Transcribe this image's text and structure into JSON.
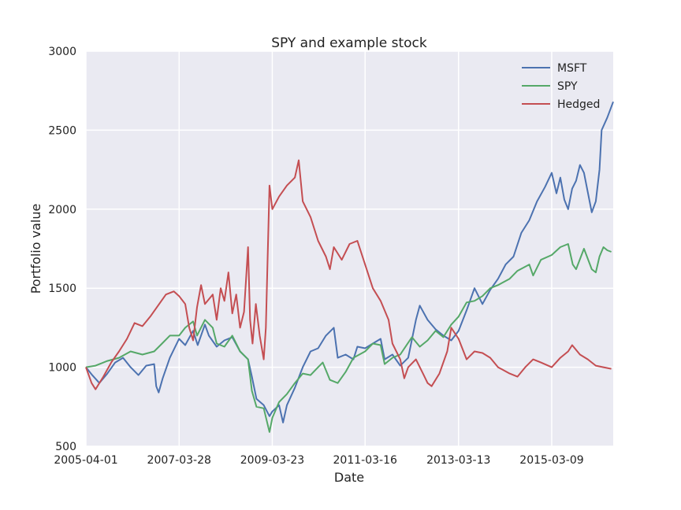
{
  "chart_data": {
    "type": "line",
    "title": "SPY and example stock",
    "xlabel": "Date",
    "ylabel": "Portfolio value",
    "xlim": [
      "2005-04-01",
      "2016-06-30"
    ],
    "ylim": [
      500,
      3000
    ],
    "x_ticks": [
      "2005-04-01",
      "2007-03-28",
      "2009-03-23",
      "2011-03-16",
      "2013-03-13",
      "2015-03-09"
    ],
    "y_ticks": [
      500,
      1000,
      1500,
      2000,
      2500,
      3000
    ],
    "grid": true,
    "legend_position": "top-right",
    "colors": {
      "background": "#eaeaf2",
      "grid": "#ffffff"
    },
    "series": [
      {
        "name": "MSFT",
        "color": "#4c72b0",
        "points": [
          [
            "2005-04-01",
            1000
          ],
          [
            "2005-05-20",
            950
          ],
          [
            "2005-07-15",
            900
          ],
          [
            "2005-09-15",
            960
          ],
          [
            "2005-11-15",
            1030
          ],
          [
            "2006-01-15",
            1060
          ],
          [
            "2006-03-15",
            1000
          ],
          [
            "2006-05-15",
            950
          ],
          [
            "2006-07-15",
            1010
          ],
          [
            "2006-09-15",
            1020
          ],
          [
            "2006-10-01",
            880
          ],
          [
            "2006-10-20",
            840
          ],
          [
            "2006-11-20",
            930
          ],
          [
            "2007-01-15",
            1060
          ],
          [
            "2007-03-28",
            1180
          ],
          [
            "2007-05-15",
            1140
          ],
          [
            "2007-07-15",
            1230
          ],
          [
            "2007-08-20",
            1140
          ],
          [
            "2007-10-15",
            1270
          ],
          [
            "2007-11-15",
            1200
          ],
          [
            "2008-01-15",
            1130
          ],
          [
            "2008-03-15",
            1170
          ],
          [
            "2008-05-15",
            1190
          ],
          [
            "2008-07-15",
            1100
          ],
          [
            "2008-09-15",
            1050
          ],
          [
            "2008-10-15",
            940
          ],
          [
            "2008-11-20",
            800
          ],
          [
            "2009-01-15",
            760
          ],
          [
            "2009-03-01",
            690
          ],
          [
            "2009-03-23",
            720
          ],
          [
            "2009-05-15",
            760
          ],
          [
            "2009-06-15",
            650
          ],
          [
            "2009-07-15",
            760
          ],
          [
            "2009-09-15",
            870
          ],
          [
            "2009-11-15",
            1000
          ],
          [
            "2010-01-15",
            1100
          ],
          [
            "2010-03-15",
            1120
          ],
          [
            "2010-05-15",
            1200
          ],
          [
            "2010-07-15",
            1250
          ],
          [
            "2010-08-15",
            1060
          ],
          [
            "2010-10-15",
            1080
          ],
          [
            "2010-12-15",
            1050
          ],
          [
            "2011-01-15",
            1130
          ],
          [
            "2011-03-16",
            1120
          ],
          [
            "2011-05-15",
            1150
          ],
          [
            "2011-07-15",
            1180
          ],
          [
            "2011-08-15",
            1050
          ],
          [
            "2011-10-15",
            1080
          ],
          [
            "2011-12-15",
            1010
          ],
          [
            "2012-02-15",
            1060
          ],
          [
            "2012-04-15",
            1300
          ],
          [
            "2012-05-15",
            1390
          ],
          [
            "2012-07-15",
            1300
          ],
          [
            "2012-09-15",
            1240
          ],
          [
            "2012-11-15",
            1200
          ],
          [
            "2013-01-15",
            1170
          ],
          [
            "2013-03-13",
            1230
          ],
          [
            "2013-05-15",
            1360
          ],
          [
            "2013-07-15",
            1500
          ],
          [
            "2013-09-15",
            1400
          ],
          [
            "2013-11-15",
            1490
          ],
          [
            "2014-01-15",
            1560
          ],
          [
            "2014-03-15",
            1650
          ],
          [
            "2014-05-15",
            1700
          ],
          [
            "2014-07-15",
            1850
          ],
          [
            "2014-09-15",
            1930
          ],
          [
            "2014-11-15",
            2050
          ],
          [
            "2015-01-15",
            2140
          ],
          [
            "2015-03-09",
            2230
          ],
          [
            "2015-04-15",
            2100
          ],
          [
            "2015-05-15",
            2200
          ],
          [
            "2015-06-15",
            2060
          ],
          [
            "2015-07-15",
            2000
          ],
          [
            "2015-08-15",
            2130
          ],
          [
            "2015-09-15",
            2180
          ],
          [
            "2015-10-15",
            2280
          ],
          [
            "2015-11-15",
            2230
          ],
          [
            "2016-01-15",
            1980
          ],
          [
            "2016-02-15",
            2050
          ],
          [
            "2016-03-15",
            2250
          ],
          [
            "2016-04-01",
            2500
          ],
          [
            "2016-05-15",
            2580
          ],
          [
            "2016-06-30",
            2680
          ]
        ]
      },
      {
        "name": "SPY",
        "color": "#55a868",
        "points": [
          [
            "2005-04-01",
            1000
          ],
          [
            "2005-06-15",
            1010
          ],
          [
            "2005-09-15",
            1040
          ],
          [
            "2005-12-15",
            1060
          ],
          [
            "2006-03-15",
            1100
          ],
          [
            "2006-06-15",
            1080
          ],
          [
            "2006-09-15",
            1100
          ],
          [
            "2006-11-15",
            1150
          ],
          [
            "2007-01-15",
            1200
          ],
          [
            "2007-03-28",
            1200
          ],
          [
            "2007-05-15",
            1250
          ],
          [
            "2007-07-15",
            1290
          ],
          [
            "2007-08-15",
            1200
          ],
          [
            "2007-10-15",
            1300
          ],
          [
            "2007-12-15",
            1250
          ],
          [
            "2008-01-15",
            1150
          ],
          [
            "2008-03-15",
            1130
          ],
          [
            "2008-05-15",
            1200
          ],
          [
            "2008-07-15",
            1100
          ],
          [
            "2008-09-15",
            1050
          ],
          [
            "2008-10-15",
            850
          ],
          [
            "2008-11-20",
            750
          ],
          [
            "2009-01-15",
            740
          ],
          [
            "2009-03-01",
            590
          ],
          [
            "2009-03-23",
            680
          ],
          [
            "2009-05-15",
            780
          ],
          [
            "2009-07-15",
            830
          ],
          [
            "2009-09-15",
            900
          ],
          [
            "2009-11-15",
            960
          ],
          [
            "2010-01-15",
            950
          ],
          [
            "2010-03-15",
            1000
          ],
          [
            "2010-04-20",
            1030
          ],
          [
            "2010-06-15",
            920
          ],
          [
            "2010-08-15",
            900
          ],
          [
            "2010-10-15",
            970
          ],
          [
            "2010-12-15",
            1060
          ],
          [
            "2011-03-16",
            1100
          ],
          [
            "2011-05-15",
            1150
          ],
          [
            "2011-07-15",
            1140
          ],
          [
            "2011-08-15",
            1020
          ],
          [
            "2011-10-15",
            1060
          ],
          [
            "2011-12-15",
            1080
          ],
          [
            "2012-03-15",
            1190
          ],
          [
            "2012-05-15",
            1130
          ],
          [
            "2012-07-15",
            1170
          ],
          [
            "2012-09-15",
            1230
          ],
          [
            "2012-11-15",
            1190
          ],
          [
            "2013-01-15",
            1270
          ],
          [
            "2013-03-13",
            1320
          ],
          [
            "2013-05-15",
            1410
          ],
          [
            "2013-07-15",
            1420
          ],
          [
            "2013-09-15",
            1450
          ],
          [
            "2013-11-15",
            1500
          ],
          [
            "2014-01-15",
            1520
          ],
          [
            "2014-04-15",
            1560
          ],
          [
            "2014-06-15",
            1610
          ],
          [
            "2014-09-15",
            1650
          ],
          [
            "2014-10-15",
            1580
          ],
          [
            "2014-12-15",
            1680
          ],
          [
            "2015-03-09",
            1710
          ],
          [
            "2015-05-15",
            1760
          ],
          [
            "2015-07-15",
            1780
          ],
          [
            "2015-08-20",
            1650
          ],
          [
            "2015-09-15",
            1620
          ],
          [
            "2015-11-15",
            1750
          ],
          [
            "2016-01-15",
            1620
          ],
          [
            "2016-02-15",
            1600
          ],
          [
            "2016-03-15",
            1700
          ],
          [
            "2016-04-15",
            1760
          ],
          [
            "2016-05-15",
            1740
          ],
          [
            "2016-06-15",
            1730
          ]
        ]
      },
      {
        "name": "Hedged",
        "color": "#c44e52",
        "points": [
          [
            "2005-04-01",
            1000
          ],
          [
            "2005-05-15",
            900
          ],
          [
            "2005-06-15",
            860
          ],
          [
            "2005-08-15",
            940
          ],
          [
            "2005-10-15",
            1030
          ],
          [
            "2005-12-15",
            1100
          ],
          [
            "2006-02-15",
            1180
          ],
          [
            "2006-04-15",
            1280
          ],
          [
            "2006-06-15",
            1260
          ],
          [
            "2006-08-15",
            1320
          ],
          [
            "2006-10-15",
            1390
          ],
          [
            "2006-12-15",
            1460
          ],
          [
            "2007-02-15",
            1480
          ],
          [
            "2007-03-28",
            1450
          ],
          [
            "2007-05-15",
            1400
          ],
          [
            "2007-06-15",
            1250
          ],
          [
            "2007-07-15",
            1170
          ],
          [
            "2007-08-15",
            1380
          ],
          [
            "2007-09-15",
            1520
          ],
          [
            "2007-10-15",
            1400
          ],
          [
            "2007-12-15",
            1460
          ],
          [
            "2008-01-15",
            1300
          ],
          [
            "2008-02-15",
            1500
          ],
          [
            "2008-03-15",
            1420
          ],
          [
            "2008-04-15",
            1600
          ],
          [
            "2008-05-15",
            1340
          ],
          [
            "2008-06-15",
            1460
          ],
          [
            "2008-07-15",
            1250
          ],
          [
            "2008-08-15",
            1350
          ],
          [
            "2008-09-15",
            1760
          ],
          [
            "2008-10-01",
            1300
          ],
          [
            "2008-10-20",
            1150
          ],
          [
            "2008-11-15",
            1400
          ],
          [
            "2008-12-15",
            1200
          ],
          [
            "2009-01-15",
            1050
          ],
          [
            "2009-02-01",
            1250
          ],
          [
            "2009-03-01",
            2150
          ],
          [
            "2009-03-23",
            2000
          ],
          [
            "2009-05-15",
            2080
          ],
          [
            "2009-07-15",
            2150
          ],
          [
            "2009-09-15",
            2200
          ],
          [
            "2009-10-15",
            2310
          ],
          [
            "2009-11-15",
            2050
          ],
          [
            "2010-01-15",
            1950
          ],
          [
            "2010-03-15",
            1800
          ],
          [
            "2010-05-15",
            1700
          ],
          [
            "2010-06-15",
            1620
          ],
          [
            "2010-07-15",
            1760
          ],
          [
            "2010-09-15",
            1680
          ],
          [
            "2010-11-15",
            1780
          ],
          [
            "2011-01-15",
            1800
          ],
          [
            "2011-03-16",
            1650
          ],
          [
            "2011-05-15",
            1500
          ],
          [
            "2011-07-15",
            1420
          ],
          [
            "2011-09-15",
            1300
          ],
          [
            "2011-10-15",
            1150
          ],
          [
            "2011-12-15",
            1050
          ],
          [
            "2012-01-15",
            930
          ],
          [
            "2012-02-15",
            1000
          ],
          [
            "2012-04-15",
            1050
          ],
          [
            "2012-06-15",
            950
          ],
          [
            "2012-07-15",
            900
          ],
          [
            "2012-08-15",
            880
          ],
          [
            "2012-10-15",
            960
          ],
          [
            "2012-12-15",
            1100
          ],
          [
            "2013-01-15",
            1250
          ],
          [
            "2013-03-13",
            1180
          ],
          [
            "2013-05-15",
            1050
          ],
          [
            "2013-07-15",
            1100
          ],
          [
            "2013-09-15",
            1090
          ],
          [
            "2013-11-15",
            1060
          ],
          [
            "2014-01-15",
            1000
          ],
          [
            "2014-04-15",
            960
          ],
          [
            "2014-06-15",
            940
          ],
          [
            "2014-08-15",
            1000
          ],
          [
            "2014-10-15",
            1050
          ],
          [
            "2014-12-15",
            1030
          ],
          [
            "2015-03-09",
            1000
          ],
          [
            "2015-05-15",
            1060
          ],
          [
            "2015-07-15",
            1100
          ],
          [
            "2015-08-15",
            1140
          ],
          [
            "2015-10-15",
            1080
          ],
          [
            "2015-12-15",
            1050
          ],
          [
            "2016-02-15",
            1010
          ],
          [
            "2016-04-15",
            1000
          ],
          [
            "2016-06-15",
            990
          ]
        ]
      }
    ]
  }
}
